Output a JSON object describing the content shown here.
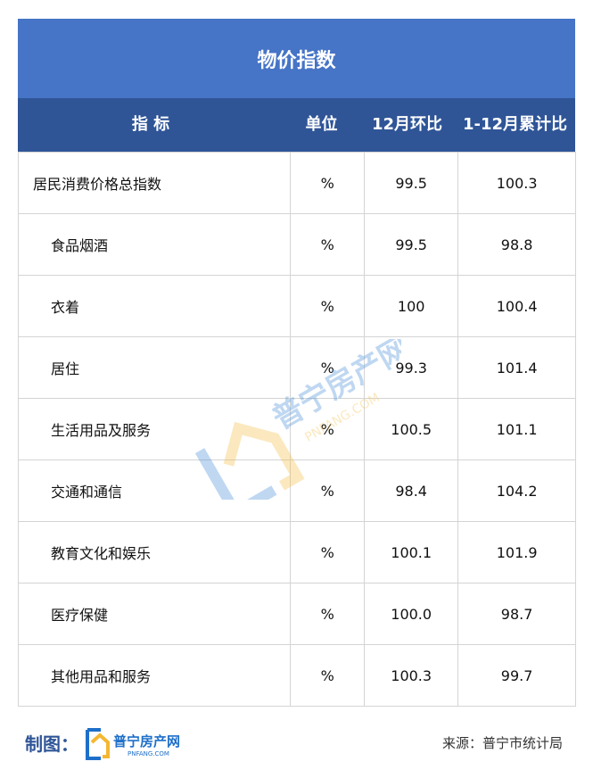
{
  "title": "物价指数",
  "chart_data": {
    "type": "table",
    "columns": [
      "指 标",
      "单位",
      "12月环比",
      "1-12月累计比"
    ],
    "rows": [
      {
        "name": "居民消费价格总指数",
        "unit": "%",
        "mom": "99.5",
        "ytd": "100.3",
        "level": 0
      },
      {
        "name": "食品烟酒",
        "unit": "%",
        "mom": "99.5",
        "ytd": "98.8",
        "level": 1
      },
      {
        "name": "衣着",
        "unit": "%",
        "mom": "100",
        "ytd": "100.4",
        "level": 1
      },
      {
        "name": "居住",
        "unit": "%",
        "mom": "99.3",
        "ytd": "101.4",
        "level": 1
      },
      {
        "name": "生活用品及服务",
        "unit": "%",
        "mom": "100.5",
        "ytd": "101.1",
        "level": 1
      },
      {
        "name": "交通和通信",
        "unit": "%",
        "mom": "98.4",
        "ytd": "104.2",
        "level": 1
      },
      {
        "name": "教育文化和娱乐",
        "unit": "%",
        "mom": "100.1",
        "ytd": "101.9",
        "level": 1
      },
      {
        "name": "医疗保健",
        "unit": "%",
        "mom": "100.0",
        "ytd": "98.7",
        "level": 1
      },
      {
        "name": "其他用品和服务",
        "unit": "%",
        "mom": "100.3",
        "ytd": "99.7",
        "level": 1
      }
    ]
  },
  "watermark": {
    "text": "普宁房产网",
    "sub": "PNFANG.COM"
  },
  "footer": {
    "made_by": "制图：",
    "logo_text": "普宁房产网",
    "logo_sub": "PNFANG.COM",
    "source": "来源：普宁市统计局"
  },
  "colors": {
    "title_bg": "#4674C6",
    "header_bg": "#2F5597"
  }
}
